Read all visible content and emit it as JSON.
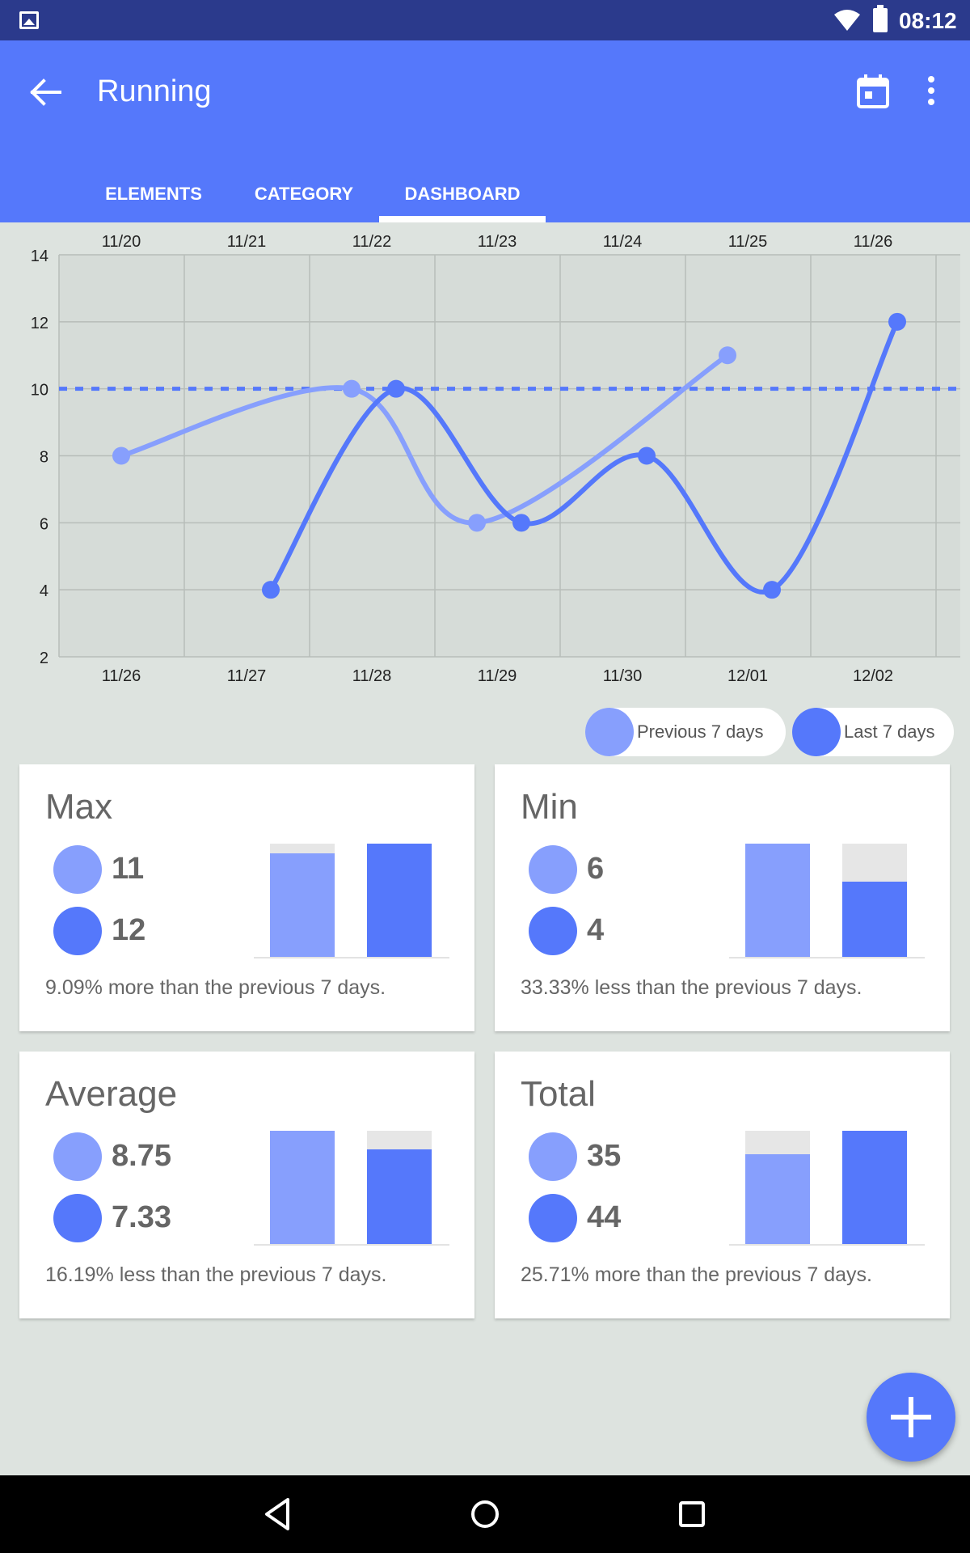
{
  "status_bar": {
    "time": "08:12",
    "icons": [
      "gallery-icon",
      "wifi-icon",
      "battery-icon"
    ]
  },
  "app_bar": {
    "title": "Running",
    "icons": [
      "back-arrow-icon",
      "calendar-icon",
      "more-vert-icon"
    ],
    "tabs": [
      {
        "label": "ELEMENTS",
        "active": false
      },
      {
        "label": "CATEGORY",
        "active": false
      },
      {
        "label": "DASHBOARD",
        "active": true
      }
    ]
  },
  "colors": {
    "primary": "#5578fb",
    "previous": "#879ffd",
    "last": "#5578fb",
    "status_bar": "#2b3a8c",
    "background": "#dde3df"
  },
  "chart_data": {
    "type": "line",
    "y_ticks": [
      2,
      4,
      6,
      8,
      10,
      12,
      14
    ],
    "ylim": [
      2,
      14
    ],
    "x_top_labels": [
      "11/20",
      "11/21",
      "11/22",
      "11/23",
      "11/24",
      "11/25",
      "11/26"
    ],
    "x_bottom_labels": [
      "11/26",
      "11/27",
      "11/28",
      "11/29",
      "11/30",
      "12/01",
      "12/02"
    ],
    "grid": true,
    "reference_line": 10,
    "series": [
      {
        "name": "Previous 7 days",
        "x_positions": [
          0,
          2,
          3,
          5
        ],
        "values": [
          8,
          10,
          6,
          11
        ]
      },
      {
        "name": "Last 7 days",
        "x_positions": [
          1,
          2,
          3,
          4,
          5,
          6
        ],
        "values": [
          4,
          10,
          6,
          8,
          4,
          12
        ]
      }
    ]
  },
  "legend": {
    "previous": "Previous 7 days",
    "last": "Last 7 days"
  },
  "cards": {
    "max": {
      "title": "Max",
      "previous": "11",
      "last": "12",
      "previous_value": 11,
      "last_value": 12,
      "description": "9.09% more than the previous 7 days."
    },
    "min": {
      "title": "Min",
      "previous": "6",
      "last": "4",
      "previous_value": 6,
      "last_value": 4,
      "description": "33.33% less than the previous 7 days."
    },
    "average": {
      "title": "Average",
      "previous": "8.75",
      "last": "7.33",
      "previous_value": 8.75,
      "last_value": 7.33,
      "description": "16.19% less than the previous 7 days."
    },
    "total": {
      "title": "Total",
      "previous": "35",
      "last": "44",
      "previous_value": 35,
      "last_value": 44,
      "description": "25.71% more than the previous 7 days."
    }
  },
  "fab": {
    "icon": "plus-icon"
  },
  "nav_bar": {
    "icons": [
      "back-triangle-icon",
      "home-circle-icon",
      "recents-square-icon"
    ]
  }
}
